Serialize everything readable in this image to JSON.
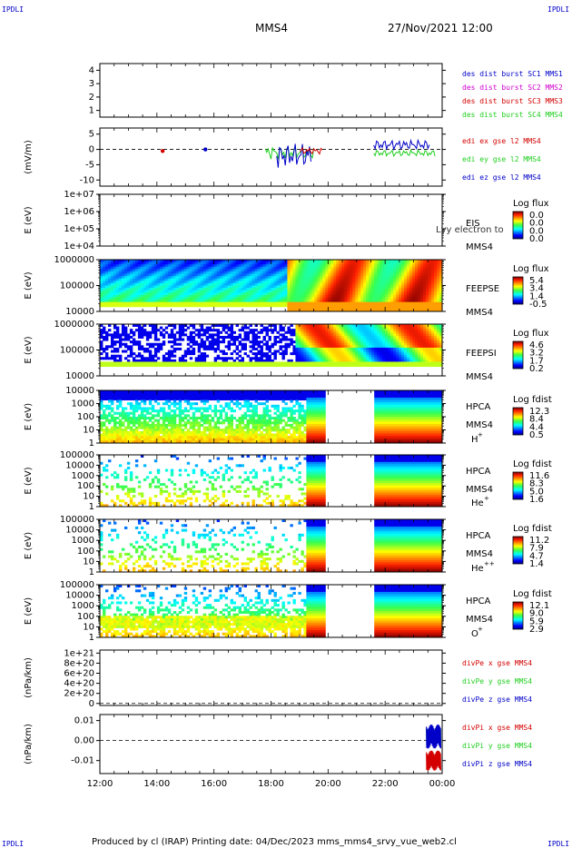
{
  "corner": {
    "tl": "IPDLI",
    "tr": "IPDLI",
    "bl": "IPDLI",
    "br": "IPDLI"
  },
  "header": {
    "spacecraft": "MMS4",
    "datetime": "27/Nov/2021 12:00"
  },
  "footer": {
    "text": "Produced by cl (IRAP)   Printing date: 04/Dec/2023   mms_mms4_srvy_vue_web2.cl"
  },
  "colors": {
    "red": "#d40000",
    "green": "#1fcf1f",
    "blue": "#0000c8",
    "magenta": "#d000d0"
  },
  "chart_data": {
    "type": "heatmap",
    "x_ticks": [
      "12:00",
      "14:00",
      "16:00",
      "18:00",
      "20:00",
      "22:00",
      "00:00"
    ],
    "panels": [
      {
        "id": "burst",
        "type": "line",
        "yticks": [
          "4",
          "3",
          "2",
          "1"
        ],
        "ylim": [
          0.5,
          4.5
        ],
        "legend": [
          {
            "text": "des dist burst SC1 MMS1",
            "color": "blue"
          },
          {
            "text": "des dist burst SC2 MMS2",
            "color": "magenta"
          },
          {
            "text": "des dist burst SC3 MMS3",
            "color": "red"
          },
          {
            "text": "des dist burst SC4 MMS4",
            "color": "green"
          }
        ]
      },
      {
        "id": "edi",
        "type": "line",
        "ylabel": "(mV/m)",
        "yticks": [
          "5",
          "0",
          "-5",
          "-10"
        ],
        "ylim": [
          -12,
          7
        ],
        "legend": [
          {
            "text": "edi ex gse l2 MMS4",
            "color": "red"
          },
          {
            "text": "edi ey gse l2 MMS4",
            "color": "green"
          },
          {
            "text": "edi ez gse l2 MMS4",
            "color": "blue"
          }
        ]
      },
      {
        "id": "eis",
        "type": "heatmap",
        "ylabel": "E (eV)",
        "yticks": [
          "1e+07",
          "1e+06",
          "1e+05",
          "1e+04"
        ],
        "name": "EIS",
        "sub": "MMS4",
        "overlap": "Lvy electron to",
        "cbar_title": "Log flux",
        "cbar_ticks": [
          "0.0",
          "0.0",
          "0.0",
          "0.0"
        ]
      },
      {
        "id": "feepse",
        "type": "heatmap",
        "ylabel": "E (eV)",
        "yticks": [
          "1000000",
          "100000",
          "10000"
        ],
        "name": "FEEPSE",
        "sub": "MMS4",
        "cbar_title": "Log flux",
        "cbar_ticks": [
          "5.4",
          "3.4",
          "1.4",
          "-0.5"
        ]
      },
      {
        "id": "feepsi",
        "type": "heatmap",
        "ylabel": "E (eV)",
        "yticks": [
          "1000000",
          "100000",
          "10000"
        ],
        "name": "FEEPSI",
        "sub": "MMS4",
        "cbar_title": "Log flux",
        "cbar_ticks": [
          "4.6",
          "3.2",
          "1.7",
          "0.2"
        ]
      },
      {
        "id": "hpca_h",
        "type": "heatmap",
        "ylabel": "E (eV)",
        "yticks": [
          "10000",
          "1000",
          "100",
          "10",
          "1"
        ],
        "name": "HPCA",
        "sub": "MMS4",
        "ion": "H",
        "ion_sup": "+",
        "cbar_title": "Log fdist",
        "cbar_ticks": [
          "12.3",
          "8.4",
          "4.4",
          "0.5"
        ]
      },
      {
        "id": "hpca_he",
        "type": "heatmap",
        "ylabel": "E (eV)",
        "yticks": [
          "100000",
          "10000",
          "1000",
          "100",
          "10",
          "1"
        ],
        "name": "HPCA",
        "sub": "MMS4",
        "ion": "He",
        "ion_sup": "+",
        "cbar_title": "Log fdist",
        "cbar_ticks": [
          "11.6",
          "8.3",
          "5.0",
          "1.6"
        ]
      },
      {
        "id": "hpca_hepp",
        "type": "heatmap",
        "ylabel": "E (eV)",
        "yticks": [
          "100000",
          "10000",
          "1000",
          "100",
          "10",
          "1"
        ],
        "name": "HPCA",
        "sub": "MMS4",
        "ion": "He",
        "ion_sup": "++",
        "cbar_title": "Log fdist",
        "cbar_ticks": [
          "11.2",
          "7.9",
          "4.7",
          "1.4"
        ]
      },
      {
        "id": "hpca_o",
        "type": "heatmap",
        "ylabel": "E (eV)",
        "yticks": [
          "100000",
          "10000",
          "1000",
          "100",
          "10",
          "1"
        ],
        "name": "HPCA",
        "sub": "MMS4",
        "ion": "O",
        "ion_sup": "+",
        "cbar_title": "Log fdist",
        "cbar_ticks": [
          "12.1",
          "9.0",
          "5.9",
          "2.9"
        ]
      },
      {
        "id": "divpe",
        "type": "line",
        "ylabel": "(nPa/km)",
        "yticks": [
          "1e+21",
          "8e+20",
          "6e+20",
          "4e+20",
          "2e+20",
          "0"
        ],
        "ylim": [
          -4e+19,
          1.06e+21
        ],
        "legend": [
          {
            "text": "divPe x gse MMS4",
            "color": "red"
          },
          {
            "text": "divPe y gse MMS4",
            "color": "green"
          },
          {
            "text": "divPe z gse MMS4",
            "color": "blue"
          }
        ]
      },
      {
        "id": "divpi",
        "type": "line",
        "ylabel": "(nPa/km)",
        "yticks": [
          "0.01",
          "0.00",
          "-0.01"
        ],
        "ylim": [
          -0.0165,
          0.013
        ],
        "legend": [
          {
            "text": "divPi x gse MMS4",
            "color": "red"
          },
          {
            "text": "divPi y gse MMS4",
            "color": "green"
          },
          {
            "text": "divPi z gse MMS4",
            "color": "blue"
          }
        ]
      }
    ]
  }
}
